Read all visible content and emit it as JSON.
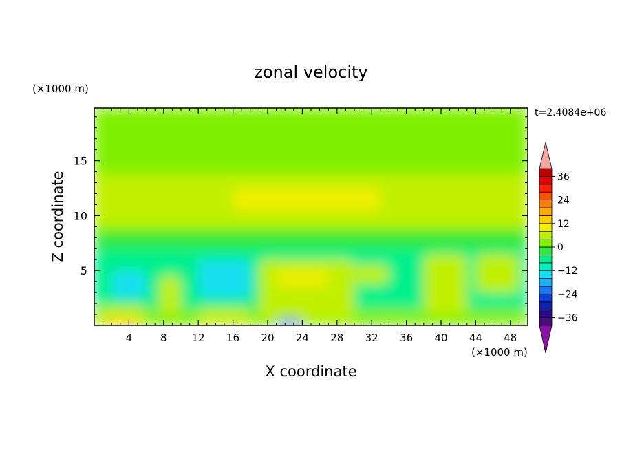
{
  "chart_data": {
    "type": "heatmap",
    "title": "zonal velocity",
    "xlabel": "X coordinate",
    "ylabel": "Z coordinate",
    "x_unit": "(×1000 m)",
    "y_unit": "(×1000 m)",
    "time_label": "t=2.4084e+06",
    "xlim": [
      0,
      50
    ],
    "ylim": [
      0,
      19.8
    ],
    "x_ticks": [
      4,
      8,
      12,
      16,
      20,
      24,
      28,
      32,
      36,
      40,
      44,
      48
    ],
    "y_ticks": [
      5,
      10,
      15
    ],
    "colorbar": {
      "min": -40,
      "max": 40,
      "step": 4,
      "labels": [
        36,
        24,
        12,
        0,
        -12,
        -24,
        -36
      ],
      "extend": "both",
      "colors": [
        "#4a0a7a",
        "#2c0a8c",
        "#1020b0",
        "#0a3fd8",
        "#1478f0",
        "#1cb0f8",
        "#14e0f0",
        "#00f0c0",
        "#00f08c",
        "#30e840",
        "#80f000",
        "#c0f000",
        "#f0f000",
        "#ffd000",
        "#ffa800",
        "#ff8000",
        "#ff5000",
        "#ff2000",
        "#e80000",
        "#c00000"
      ],
      "over_color": "#f4a6a0",
      "under_color": "#8a10a8"
    },
    "field_layers": [
      {
        "value": 2,
        "z_range": [
          0,
          19.8
        ],
        "x_range": [
          0,
          50
        ]
      },
      {
        "value": 0,
        "z_range": [
          14.5,
          19.8
        ],
        "x_range": [
          0,
          33
        ]
      },
      {
        "value": 0,
        "z_range": [
          15.5,
          19.8
        ],
        "x_range": [
          33,
          50
        ]
      },
      {
        "value": 6,
        "z_range": [
          9.0,
          13.8
        ],
        "x_range": [
          0,
          50
        ]
      },
      {
        "value": 10,
        "z_range": [
          10.5,
          12.5
        ],
        "x_range": [
          16,
          33
        ]
      },
      {
        "value": -4,
        "z_range": [
          7.0,
          8.5
        ],
        "x_range": [
          0,
          50
        ]
      },
      {
        "value": -8,
        "z_range": [
          1.5,
          7.0
        ],
        "x_range": [
          0,
          50
        ]
      },
      {
        "value": 6,
        "z_range": [
          0.5,
          6.0
        ],
        "x_range": [
          19,
          30
        ]
      },
      {
        "value": 10,
        "z_range": [
          3.5,
          5.0
        ],
        "x_range": [
          21,
          27
        ]
      },
      {
        "value": -14,
        "z_range": [
          2.5,
          5.0
        ],
        "x_range": [
          2,
          6
        ]
      },
      {
        "value": -14,
        "z_range": [
          2.5,
          6.0
        ],
        "x_range": [
          12,
          18
        ]
      },
      {
        "value": 6,
        "z_range": [
          0,
          1.8
        ],
        "x_range": [
          0.5,
          6
        ]
      },
      {
        "value": 14,
        "z_range": [
          0,
          0.6
        ],
        "x_range": [
          1,
          5
        ]
      },
      {
        "value": 6,
        "z_range": [
          0,
          1.6
        ],
        "x_range": [
          12,
          18
        ]
      },
      {
        "value": -22,
        "z_range": [
          0,
          0.6
        ],
        "x_range": [
          21,
          24
        ]
      },
      {
        "value": 6,
        "z_range": [
          1.0,
          4.5
        ],
        "x_range": [
          7.5,
          10
        ]
      },
      {
        "value": 6,
        "z_range": [
          1.0,
          6.5
        ],
        "x_range": [
          38,
          43
        ]
      },
      {
        "value": 6,
        "z_range": [
          3.0,
          6.5
        ],
        "x_range": [
          44,
          49
        ]
      },
      {
        "value": 6,
        "z_range": [
          3.8,
          5.5
        ],
        "x_range": [
          30,
          34
        ]
      }
    ]
  }
}
